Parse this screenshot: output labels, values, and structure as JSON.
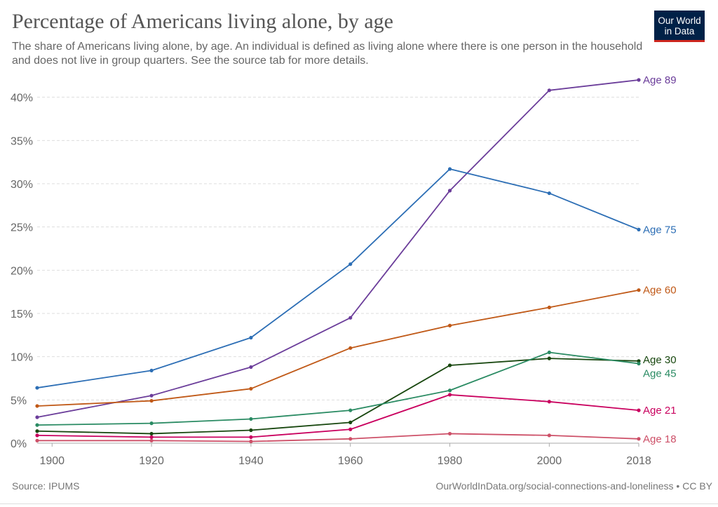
{
  "header": {
    "title": "Percentage of Americans living alone, by age",
    "subtitle": "The share of Americans living alone, by age. An individual is defined as living alone where there is one person in the household and does not live in group quarters. See the source tab for more details.",
    "logo_line1": "Our World",
    "logo_line2": "in Data",
    "logo_bg": "#002147",
    "logo_accent": "#ce261e"
  },
  "footer": {
    "source": "Source: IPUMS",
    "credit": "OurWorldInData.org/social-connections-and-loneliness • CC BY"
  },
  "chart_data": {
    "type": "line",
    "title": "Percentage of Americans living alone, by age",
    "xlabel": "",
    "ylabel": "",
    "x": [
      1897,
      1920,
      1940,
      1960,
      1980,
      2000,
      2018
    ],
    "x_ticks": [
      1900,
      1920,
      1940,
      1960,
      1980,
      2000,
      2018
    ],
    "xlim": [
      1897,
      2018
    ],
    "ylim": [
      0,
      42
    ],
    "y_ticks": [
      0,
      5,
      10,
      15,
      20,
      25,
      30,
      35,
      40
    ],
    "y_tick_labels": [
      "0%",
      "5%",
      "10%",
      "15%",
      "20%",
      "25%",
      "30%",
      "35%",
      "40%"
    ],
    "grid": "horizontal dashed",
    "legend": "direct labels at right end of lines",
    "series": [
      {
        "name": "Age 89",
        "color": "#6b3d9a",
        "values": [
          3.0,
          5.5,
          8.8,
          14.5,
          29.2,
          40.8,
          42.0
        ]
      },
      {
        "name": "Age 75",
        "color": "#2c6eb5",
        "values": [
          6.4,
          8.4,
          12.2,
          20.7,
          31.7,
          28.9,
          24.7
        ]
      },
      {
        "name": "Age 60",
        "color": "#c05917",
        "values": [
          4.3,
          4.9,
          6.3,
          11.0,
          13.6,
          15.7,
          17.7
        ]
      },
      {
        "name": "Age 30",
        "color": "#18470f",
        "values": [
          1.4,
          1.1,
          1.5,
          2.4,
          9.0,
          9.8,
          9.5
        ]
      },
      {
        "name": "Age 45",
        "color": "#2a8b63",
        "values": [
          2.1,
          2.3,
          2.8,
          3.8,
          6.1,
          10.5,
          9.2
        ]
      },
      {
        "name": "Age 21",
        "color": "#c9005e",
        "values": [
          0.9,
          0.7,
          0.7,
          1.6,
          5.6,
          4.8,
          3.8
        ]
      },
      {
        "name": "Age 18",
        "color": "#cd5068",
        "values": [
          0.3,
          0.3,
          0.2,
          0.5,
          1.1,
          0.9,
          0.5
        ]
      }
    ]
  }
}
